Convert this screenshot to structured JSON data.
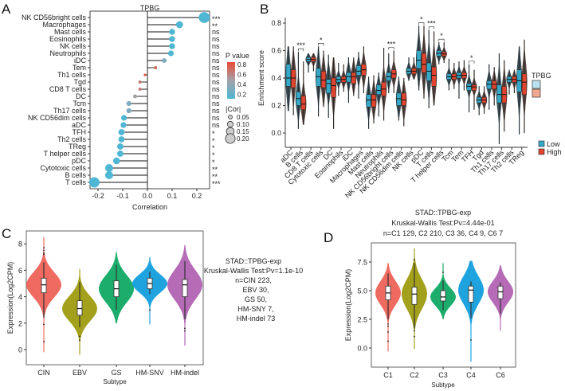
{
  "panels": {
    "a": "A",
    "b": "B",
    "c": "C",
    "d": "D"
  },
  "chart_data": [
    {
      "type": "lollipop",
      "title": "TPBG",
      "xlabel": "Correlation",
      "xlim": [
        -0.23,
        0.25
      ],
      "xticks": [
        "-0.2",
        "-0.1",
        "0.0",
        "0.1",
        "0.2"
      ],
      "legend_pvalue_title": "P value",
      "legend_pvalue_ticks": [
        "0.8",
        "0.6",
        "0.4",
        "0.2"
      ],
      "legend_cor_title": "|Cor|",
      "legend_cor_ticks": [
        "0.05",
        "0.10",
        "0.15",
        "0.20"
      ],
      "colors": {
        "low_p": "#4fb6d3",
        "mid_p": "#a3a3ab",
        "high_p": "#ea4a35"
      },
      "categories": [
        "NK CD56bright cells",
        "Macrophages",
        "Mast cells",
        "Eosinophils",
        "NK cells",
        "Neutrophils",
        "iDC",
        "Tem",
        "Th1 cells",
        "Tgd",
        "CD8 T cells",
        "DC",
        "Tcm",
        "Th17 cells",
        "NK CD56dim cells",
        "aDC",
        "TFH",
        "Th2 cells",
        "TReg",
        "T helper cells",
        "pDC",
        "Cytotoxic cells",
        "B cells",
        "T cells"
      ],
      "correlation": [
        0.23,
        0.13,
        0.1,
        0.1,
        0.1,
        0.095,
        0.068,
        0.033,
        -0.01,
        -0.03,
        -0.03,
        -0.05,
        -0.075,
        -0.075,
        -0.095,
        -0.097,
        -0.105,
        -0.105,
        -0.11,
        -0.11,
        -0.125,
        -0.155,
        -0.155,
        -0.215
      ],
      "p_value": [
        0.0001,
        0.005,
        0.07,
        0.07,
        0.07,
        0.08,
        0.3,
        0.7,
        0.85,
        0.65,
        0.65,
        0.48,
        0.3,
        0.3,
        0.1,
        0.1,
        0.03,
        0.03,
        0.03,
        0.03,
        0.02,
        0.004,
        0.004,
        0.0001
      ],
      "significance": [
        "***",
        "**",
        "ns",
        "ns",
        "ns",
        "ns",
        "ns",
        "ns",
        "ns",
        "ns",
        "ns",
        "ns",
        "ns",
        "ns",
        "ns",
        "ns",
        "*",
        "*",
        "*",
        "*",
        "*",
        "**",
        "**",
        "***"
      ]
    },
    {
      "type": "violin-box",
      "ylabel": "Enrichment score",
      "ylim": [
        -0.1,
        0.82
      ],
      "yticks": [
        "0.0",
        "0.2",
        "0.4",
        "0.6",
        "0.8"
      ],
      "legend_title": "TPBG",
      "legend_position": "right",
      "colors": {
        "Low": "#36a8c8",
        "High": "#e0442e"
      },
      "series_names": [
        "Low",
        "High"
      ],
      "categories": [
        "aDC",
        "B cells",
        "CD8 T cells",
        "Cytotoxic cells",
        "DC",
        "Eosinophils",
        "iDC",
        "Macrophages",
        "Mast cells",
        "Neutrophils",
        "NK CD56bright cells",
        "NK CD56dim cells",
        "NK cells",
        "pDC",
        "T cells",
        "T helper cells",
        "Tcm",
        "Tem",
        "TFH",
        "Tgd",
        "Th1 cells",
        "Th17 cells",
        "Th2 cells",
        "TReg"
      ],
      "low_q1_median_q3_min_max": [
        [
          0.34,
          0.4,
          0.5,
          0.16,
          0.63
        ],
        [
          0.2,
          0.25,
          0.3,
          0.03,
          0.59
        ],
        [
          0.52,
          0.535,
          0.55,
          0.44,
          0.58
        ],
        [
          0.34,
          0.41,
          0.47,
          0.12,
          0.63
        ],
        [
          0.29,
          0.36,
          0.39,
          0.11,
          0.57
        ],
        [
          0.37,
          0.39,
          0.41,
          0.27,
          0.51
        ],
        [
          0.37,
          0.41,
          0.44,
          0.22,
          0.55
        ],
        [
          0.42,
          0.45,
          0.49,
          0.25,
          0.59
        ],
        [
          0.19,
          0.24,
          0.28,
          0.03,
          0.41
        ],
        [
          0.28,
          0.31,
          0.35,
          0.12,
          0.44
        ],
        [
          0.38,
          0.41,
          0.44,
          0.29,
          0.58
        ],
        [
          0.2,
          0.25,
          0.29,
          0.09,
          0.41
        ],
        [
          0.43,
          0.45,
          0.47,
          0.38,
          0.55
        ],
        [
          0.47,
          0.53,
          0.6,
          0.31,
          0.78
        ],
        [
          0.38,
          0.45,
          0.51,
          0.18,
          0.75
        ],
        [
          0.56,
          0.58,
          0.6,
          0.5,
          0.66
        ],
        [
          0.39,
          0.41,
          0.43,
          0.31,
          0.54
        ],
        [
          0.4,
          0.42,
          0.44,
          0.25,
          0.52
        ],
        [
          0.31,
          0.34,
          0.36,
          0.15,
          0.5
        ],
        [
          0.22,
          0.24,
          0.26,
          0.13,
          0.34
        ],
        [
          0.32,
          0.355,
          0.38,
          0.17,
          0.5
        ],
        [
          0.22,
          0.28,
          0.35,
          -0.08,
          0.58
        ],
        [
          0.37,
          0.39,
          0.41,
          0.28,
          0.46
        ],
        [
          0.3,
          0.38,
          0.46,
          -0.01,
          0.63
        ]
      ],
      "high_q1_median_q3_min_max": [
        [
          0.33,
          0.4,
          0.46,
          0.13,
          0.63
        ],
        [
          0.17,
          0.21,
          0.27,
          0.06,
          0.52
        ],
        [
          0.52,
          0.535,
          0.55,
          0.45,
          0.58
        ],
        [
          0.33,
          0.385,
          0.45,
          0.19,
          0.6
        ],
        [
          0.26,
          0.345,
          0.4,
          0.03,
          0.55
        ],
        [
          0.37,
          0.39,
          0.41,
          0.3,
          0.5
        ],
        [
          0.36,
          0.41,
          0.44,
          0.27,
          0.55
        ],
        [
          0.42,
          0.46,
          0.5,
          0.29,
          0.63
        ],
        [
          0.19,
          0.24,
          0.28,
          0.07,
          0.42
        ],
        [
          0.27,
          0.32,
          0.37,
          0.09,
          0.62
        ],
        [
          0.4,
          0.43,
          0.46,
          0.29,
          0.6
        ],
        [
          0.2,
          0.24,
          0.29,
          0.05,
          0.4
        ],
        [
          0.43,
          0.45,
          0.47,
          0.39,
          0.55
        ],
        [
          0.44,
          0.5,
          0.58,
          0.25,
          0.78
        ],
        [
          0.34,
          0.42,
          0.48,
          0.2,
          0.74
        ],
        [
          0.56,
          0.575,
          0.59,
          0.51,
          0.66
        ],
        [
          0.39,
          0.41,
          0.43,
          0.32,
          0.51
        ],
        [
          0.4,
          0.42,
          0.44,
          0.31,
          0.53
        ],
        [
          0.31,
          0.335,
          0.35,
          0.17,
          0.46
        ],
        [
          0.22,
          0.24,
          0.26,
          0.14,
          0.34
        ],
        [
          0.32,
          0.355,
          0.38,
          0.2,
          0.48
        ],
        [
          0.22,
          0.28,
          0.34,
          0.01,
          0.53
        ],
        [
          0.37,
          0.39,
          0.41,
          0.29,
          0.46
        ],
        [
          0.28,
          0.37,
          0.43,
          0.0,
          0.68
        ]
      ],
      "significance": [
        "",
        "***",
        "",
        "*",
        "",
        "",
        "",
        "",
        "",
        "",
        "***",
        "",
        "",
        "*",
        "***",
        "*",
        "",
        "",
        "*",
        "",
        "",
        "",
        "",
        ""
      ]
    },
    {
      "type": "violin-box",
      "ylabel": "Expression(Log2CPM)",
      "xlabel": "Subtype",
      "ylim": [
        -0.8,
        9.1
      ],
      "yticks": [
        "0",
        "2",
        "4",
        "6",
        "8"
      ],
      "annotation": [
        "STAD::TPBG-exp",
        "Kruskal-Wallis Test:Pv=1.1e-10",
        "n=CIN 223,",
        "EBV 30,",
        "GS 50,",
        "HM-SNY 7,",
        "HM-indel 73"
      ],
      "categories": [
        "CIN",
        "EBV",
        "GS",
        "HM-SNV",
        "HM-indel"
      ],
      "colors": [
        "#ef6a60",
        "#a3a01c",
        "#1cad6c",
        "#1fa3de",
        "#b56bb5"
      ],
      "median": [
        4.9,
        3.1,
        4.6,
        5.0,
        4.9
      ],
      "q1": [
        4.3,
        2.6,
        4.0,
        4.6,
        4.0
      ],
      "q3": [
        5.4,
        3.7,
        5.2,
        5.4,
        5.3
      ],
      "whisker_low": [
        2.4,
        1.7,
        3.0,
        4.2,
        2.3
      ],
      "whisker_high": [
        6.6,
        5.1,
        6.4,
        5.9,
        6.7
      ],
      "min": [
        -0.2,
        -0.4,
        2.0,
        1.9,
        0.3
      ],
      "max": [
        8.5,
        6.1,
        7.4,
        7.0,
        7.9
      ],
      "outliers": [
        [
          7.7,
          7.5,
          7.3,
          7.2,
          1.9,
          0.6
        ],
        [
          1.0,
          0.7
        ],
        [],
        [
          3.0
        ],
        [
          1.6,
          1.4
        ]
      ]
    },
    {
      "type": "violin-box",
      "title": [
        "STAD::TPBG-exp",
        "Kruskal-Wallis Test:Pv=4.44e-01",
        "n=C1 129, C2 210, C3 36, C4 9, C6 7"
      ],
      "ylabel": "Expression(Log2CPM)",
      "xlabel": "Subtype",
      "ylim": [
        -1.7,
        9.3
      ],
      "yticks": [
        "0.0",
        "2.5",
        "5.0",
        "7.5"
      ],
      "categories": [
        "C1",
        "C2",
        "C3",
        "C4",
        "C6"
      ],
      "colors": [
        "#ef6a60",
        "#a3a01c",
        "#1cad6c",
        "#1fa3de",
        "#b56bb5"
      ],
      "median": [
        4.8,
        4.7,
        4.45,
        5.05,
        4.9
      ],
      "q1": [
        4.2,
        3.8,
        4.1,
        4.0,
        4.3
      ],
      "q3": [
        5.4,
        5.3,
        5.0,
        5.4,
        5.4
      ],
      "whisker_low": [
        2.5,
        1.7,
        3.3,
        2.6,
        3.0
      ],
      "whisker_high": [
        6.5,
        7.4,
        5.9,
        5.8,
        5.7
      ],
      "min": [
        -0.3,
        -0.1,
        2.5,
        -1.2,
        1.5
      ],
      "max": [
        7.4,
        8.7,
        7.4,
        7.6,
        7.2
      ],
      "outliers": [
        [
          2.1,
          1.9,
          1.4,
          0.6
        ],
        [
          7.7,
          1.5,
          1.0
        ],
        [
          6.6
        ],
        [
          0.7
        ],
        []
      ]
    }
  ]
}
